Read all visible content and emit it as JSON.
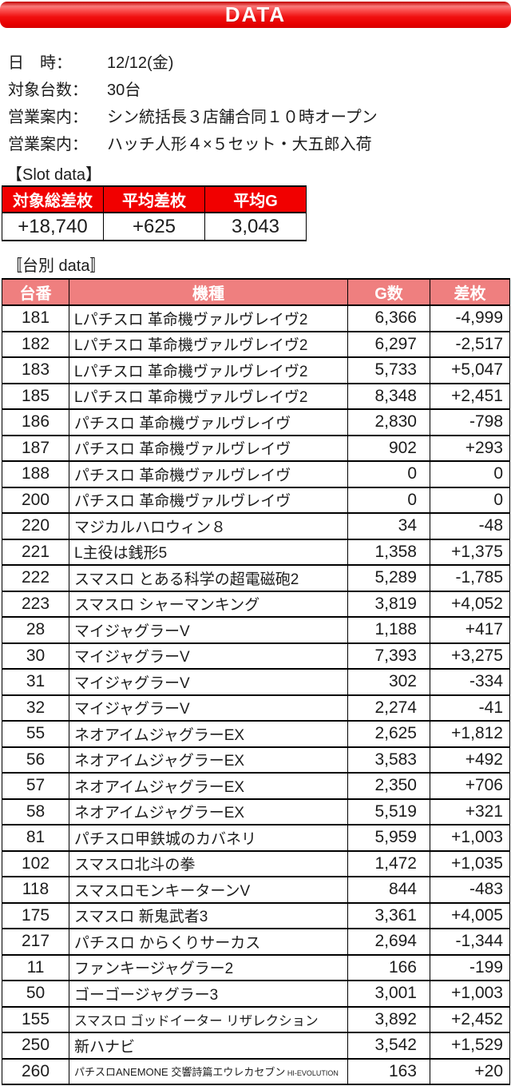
{
  "banner": {
    "title": "DATA"
  },
  "colors": {
    "banner_red": "#ee0000",
    "summary_header_red": "#f10000",
    "machine_header_pink": "#ef7f7f"
  },
  "info": {
    "rows": [
      {
        "label": "日　時：",
        "value": "12/12(金)"
      },
      {
        "label": "対象台数：",
        "value": "30台"
      },
      {
        "label": "営業案内：",
        "value": "シン統括長３店舗合同１０時オープン"
      },
      {
        "label": "営業案内：",
        "value": "ハッチ人形４×５セット・大五郎入荷"
      }
    ]
  },
  "slot_summary": {
    "heading": "【Slot data】",
    "headers": [
      "対象総差枚",
      "平均差枚",
      "平均G"
    ],
    "values": [
      "+18,740",
      "+625",
      "3,043"
    ]
  },
  "machine_table": {
    "heading": "〚台別 data〛",
    "headers": [
      "台番",
      "機種",
      "G数",
      "差枚"
    ],
    "rows": [
      {
        "no": "181",
        "name": "Lパチスロ 革命機ヴァルヴレイヴ2",
        "g": "6,366",
        "diff": "-4,999"
      },
      {
        "no": "182",
        "name": "Lパチスロ 革命機ヴァルヴレイヴ2",
        "g": "6,297",
        "diff": "-2,517"
      },
      {
        "no": "183",
        "name": "Lパチスロ 革命機ヴァルヴレイヴ2",
        "g": "5,733",
        "diff": "+5,047"
      },
      {
        "no": "185",
        "name": "Lパチスロ 革命機ヴァルヴレイヴ2",
        "g": "8,348",
        "diff": "+2,451"
      },
      {
        "no": "186",
        "name": "パチスロ 革命機ヴァルヴレイヴ",
        "g": "2,830",
        "diff": "-798"
      },
      {
        "no": "187",
        "name": "パチスロ 革命機ヴァルヴレイヴ",
        "g": "902",
        "diff": "+293"
      },
      {
        "no": "188",
        "name": "パチスロ 革命機ヴァルヴレイヴ",
        "g": "0",
        "diff": "0"
      },
      {
        "no": "200",
        "name": "パチスロ 革命機ヴァルヴレイヴ",
        "g": "0",
        "diff": "0"
      },
      {
        "no": "220",
        "name": "マジカルハロウィン８",
        "g": "34",
        "diff": "-48"
      },
      {
        "no": "221",
        "name": "L主役は銭形5",
        "g": "1,358",
        "diff": "+1,375"
      },
      {
        "no": "222",
        "name": "スマスロ とある科学の超電磁砲2",
        "g": "5,289",
        "diff": "-1,785"
      },
      {
        "no": "223",
        "name": "スマスロ シャーマンキング",
        "g": "3,819",
        "diff": "+4,052"
      },
      {
        "no": "28",
        "name": "マイジャグラーV",
        "g": "1,188",
        "diff": "+417"
      },
      {
        "no": "30",
        "name": "マイジャグラーV",
        "g": "7,393",
        "diff": "+3,275"
      },
      {
        "no": "31",
        "name": "マイジャグラーV",
        "g": "302",
        "diff": "-334"
      },
      {
        "no": "32",
        "name": "マイジャグラーV",
        "g": "2,274",
        "diff": "-41"
      },
      {
        "no": "55",
        "name": "ネオアイムジャグラーEX",
        "g": "2,625",
        "diff": "+1,812"
      },
      {
        "no": "56",
        "name": "ネオアイムジャグラーEX",
        "g": "3,583",
        "diff": "+492"
      },
      {
        "no": "57",
        "name": "ネオアイムジャグラーEX",
        "g": "2,350",
        "diff": "+706"
      },
      {
        "no": "58",
        "name": "ネオアイムジャグラーEX",
        "g": "5,519",
        "diff": "+321"
      },
      {
        "no": "81",
        "name": "パチスロ甲鉄城のカバネリ",
        "g": "5,959",
        "diff": "+1,003"
      },
      {
        "no": "102",
        "name": "スマスロ北斗の拳",
        "g": "1,472",
        "diff": "+1,035"
      },
      {
        "no": "118",
        "name": "スマスロモンキーターンV",
        "g": "844",
        "diff": "-483"
      },
      {
        "no": "175",
        "name": "スマスロ 新鬼武者3",
        "g": "3,361",
        "diff": "+4,005"
      },
      {
        "no": "217",
        "name": "パチスロ からくりサーカス",
        "g": "2,694",
        "diff": "-1,344"
      },
      {
        "no": "11",
        "name": "ファンキージャグラー2",
        "g": "166",
        "diff": "-199"
      },
      {
        "no": "50",
        "name": "ゴーゴージャグラー3",
        "g": "3,001",
        "diff": "+1,003"
      },
      {
        "no": "155",
        "name": "スマスロ ゴッドイーター リザレクション",
        "g": "3,892",
        "diff": "+2,452"
      },
      {
        "no": "250",
        "name": "新ハナビ",
        "g": "3,542",
        "diff": "+1,529"
      },
      {
        "no": "260",
        "name": "パチスロANEMONE 交響詩篇エウレカセブン",
        "name_suffix": "HI-EVOLUTION",
        "g": "163",
        "diff": "+20"
      }
    ]
  }
}
